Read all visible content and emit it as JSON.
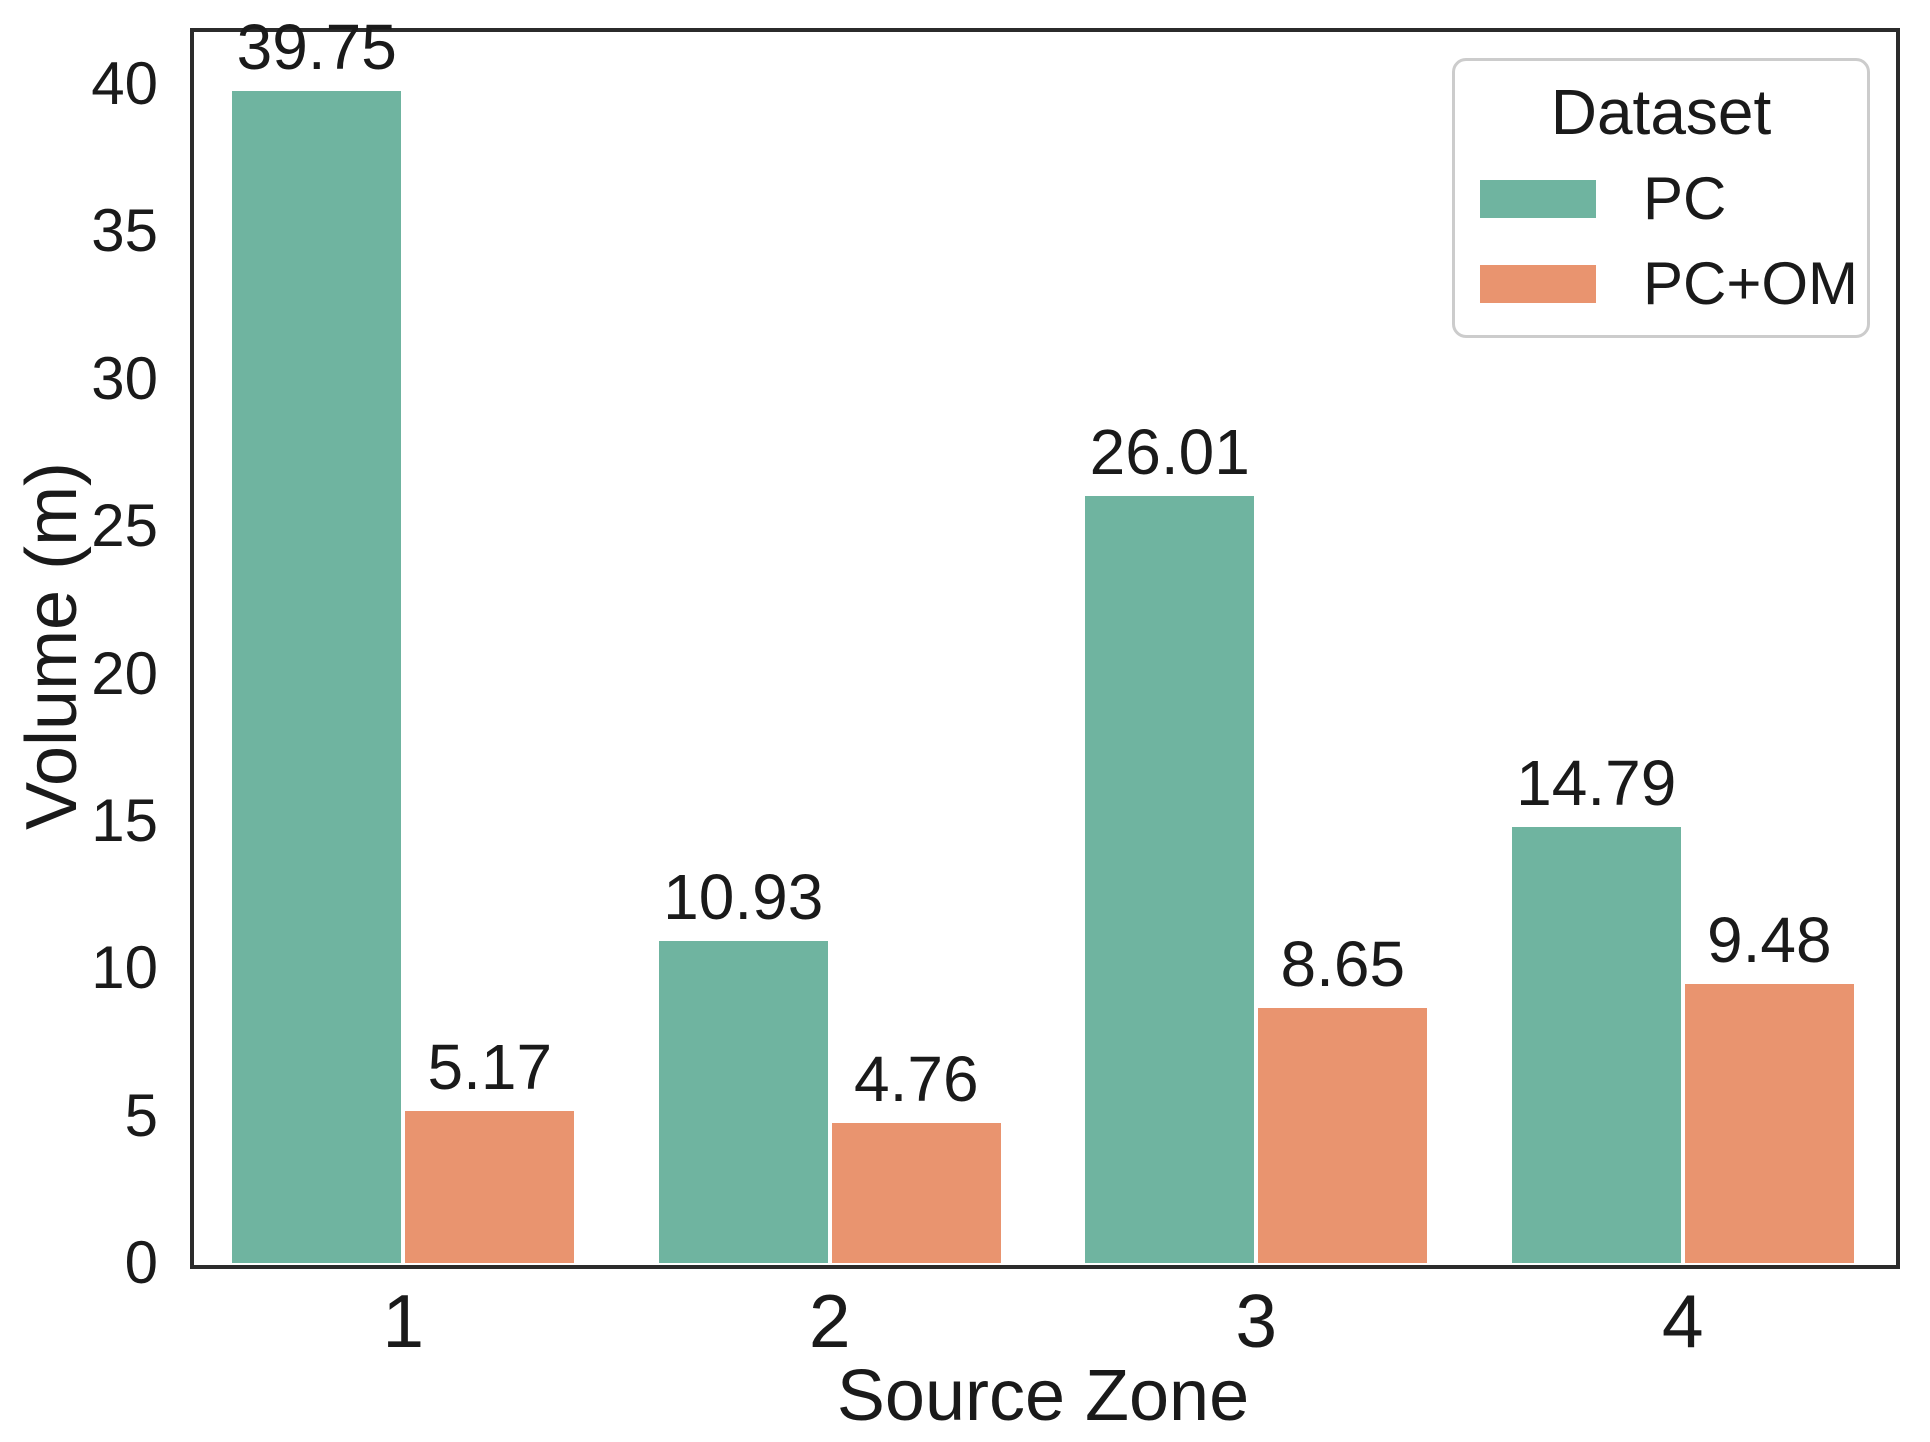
{
  "chart_data": {
    "type": "bar",
    "title": "",
    "xlabel": "Source Zone",
    "ylabel": "Volume (m)",
    "categories": [
      "1",
      "2",
      "3",
      "4"
    ],
    "series": [
      {
        "name": "PC",
        "color": "#6fb4a0",
        "values": [
          39.75,
          10.93,
          26.01,
          14.79
        ]
      },
      {
        "name": "PC+OM",
        "color": "#e9946f",
        "values": [
          5.17,
          4.76,
          8.65,
          9.48
        ]
      }
    ],
    "value_label_decimals": 2,
    "yticks": [
      0,
      5,
      10,
      15,
      20,
      25,
      30,
      35,
      40
    ],
    "ylim": [
      0,
      41.9
    ],
    "grid": false,
    "bar_labels_shown": true,
    "legend": {
      "title": "Dataset",
      "position": "upper right",
      "entries": [
        "PC",
        "PC+OM"
      ]
    }
  },
  "colors": {
    "background": "#ffffff",
    "spine": "#2b2b2b",
    "text": "#1a1a1a",
    "legend_border": "#cccccc",
    "series_pc": "#6fb4a0",
    "series_pc_om": "#e9946f"
  }
}
